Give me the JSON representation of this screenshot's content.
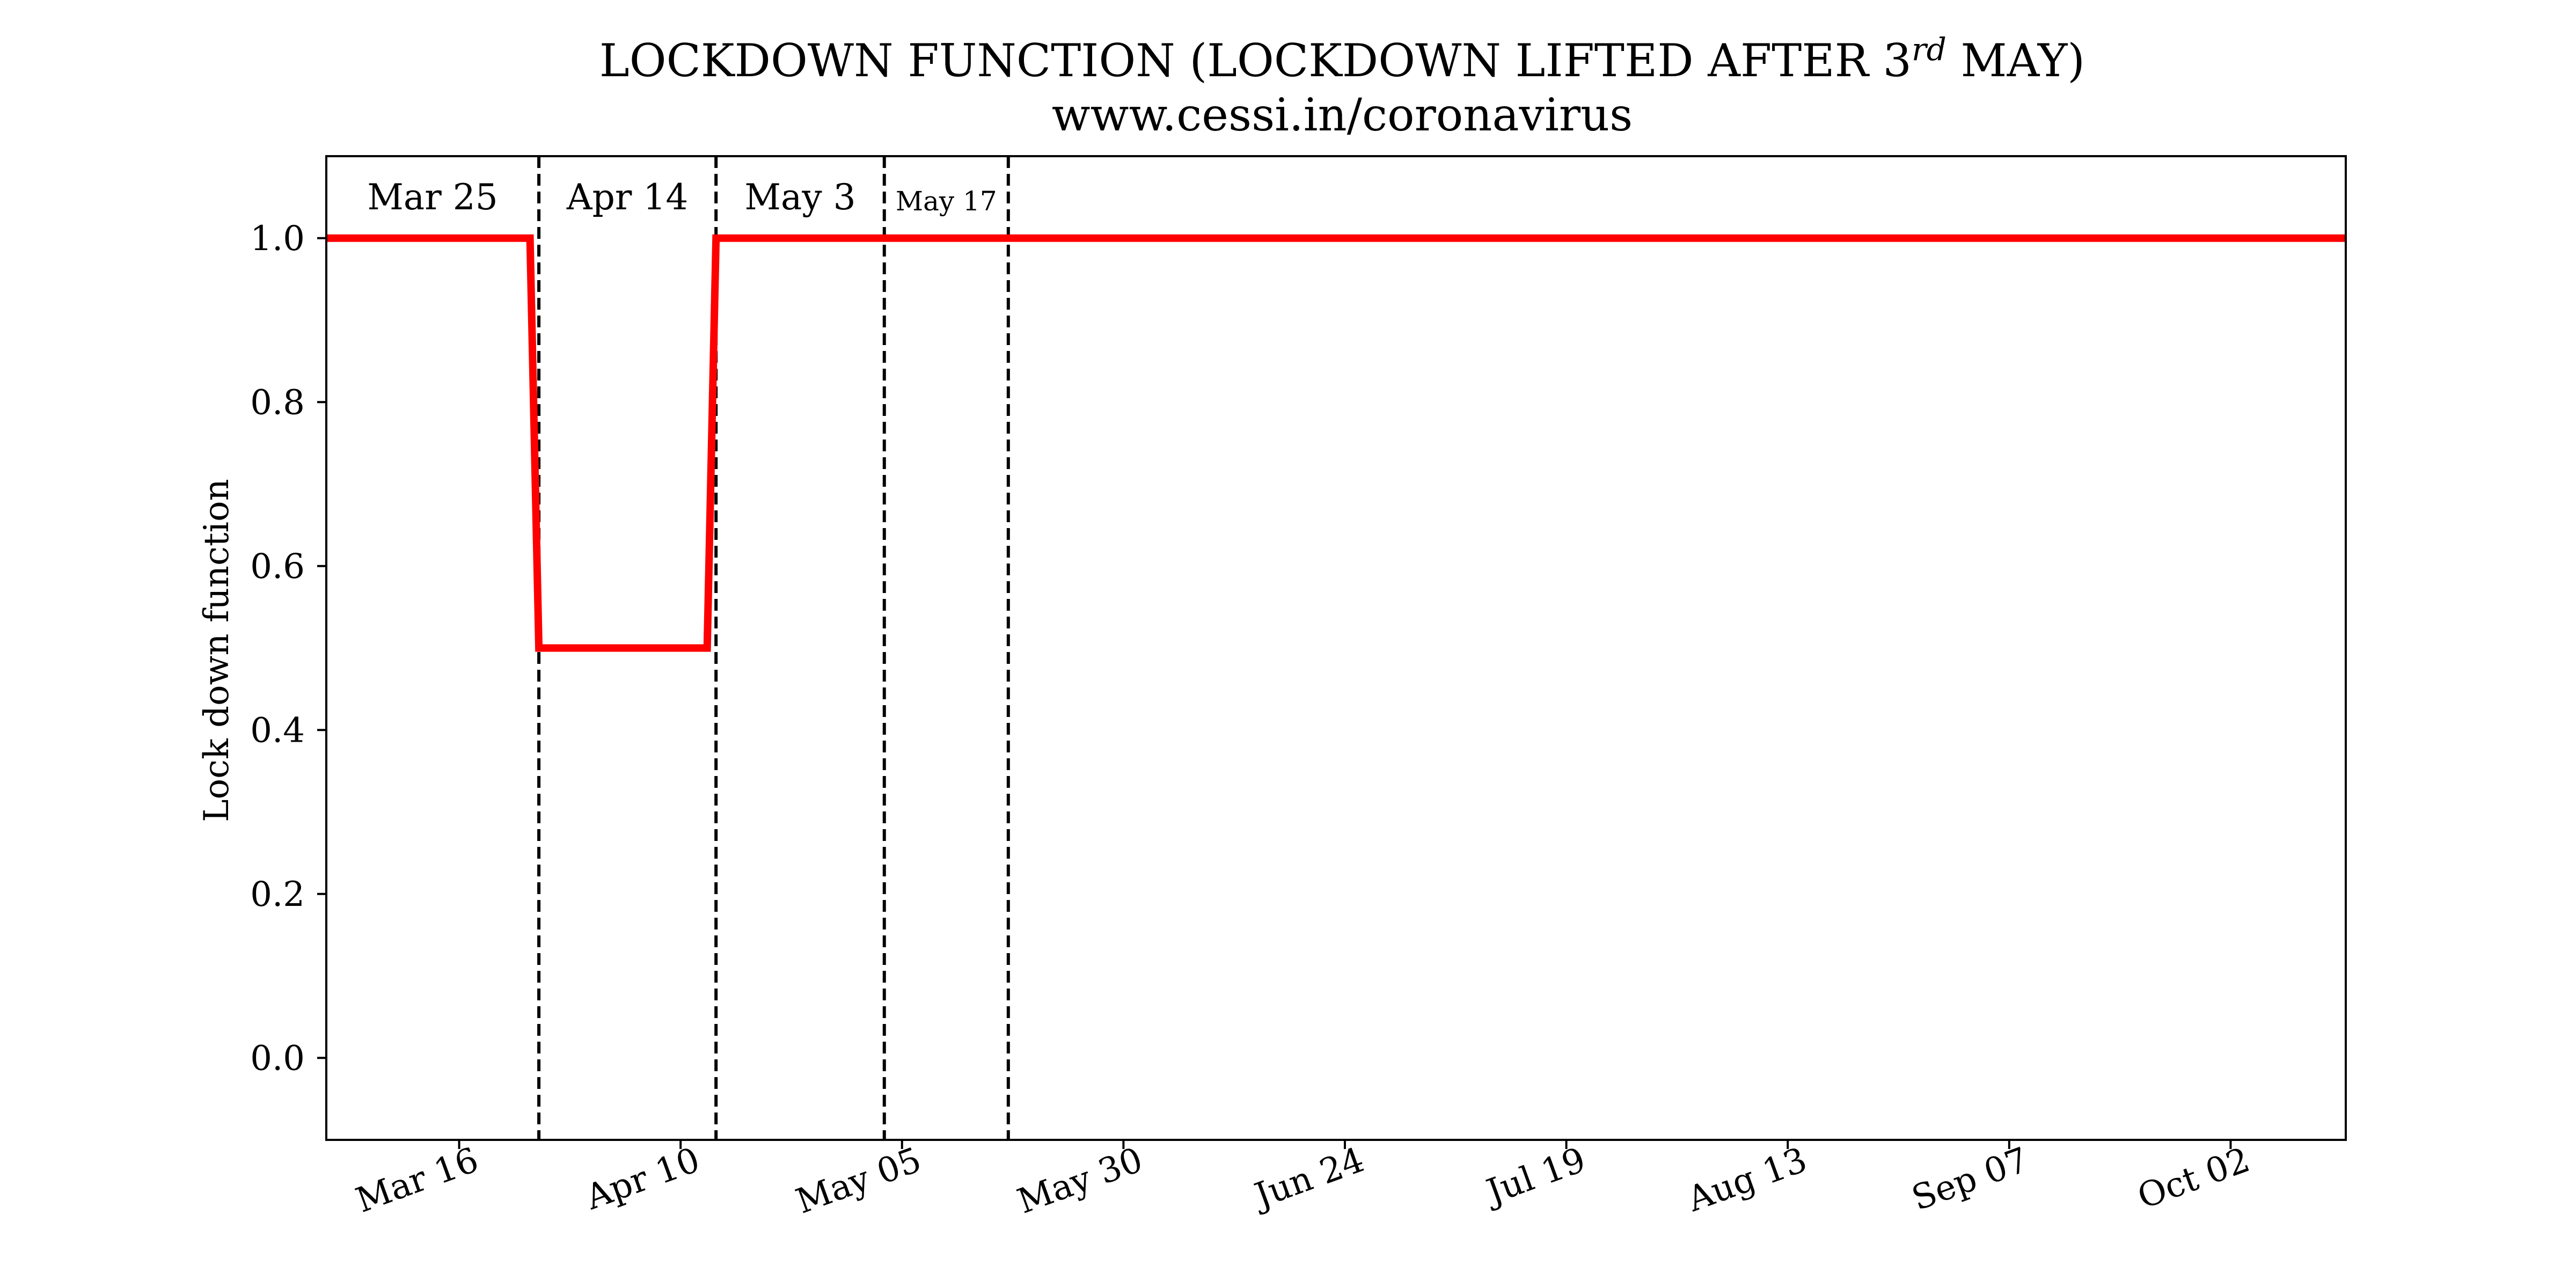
{
  "chart_data": {
    "type": "line",
    "title": "LOCKDOWN FUNCTION (LOCKDOWN LIFTED AFTER 3",
    "title_superscript": "rd",
    "title_suffix": " MAY)",
    "subtitle": "www.cessi.in/coronavirus",
    "xlabel": "",
    "ylabel": "Lock down function",
    "ylim": [
      -0.1,
      1.1
    ],
    "xlim": [
      "2020-03-01",
      "2020-10-15"
    ],
    "grid": false,
    "x_ticks": [
      {
        "date": "2020-03-16",
        "label": "Mar 16"
      },
      {
        "date": "2020-04-10",
        "label": "Apr 10"
      },
      {
        "date": "2020-05-05",
        "label": "May 05"
      },
      {
        "date": "2020-05-30",
        "label": "May 30"
      },
      {
        "date": "2020-06-24",
        "label": "Jun 24"
      },
      {
        "date": "2020-07-19",
        "label": "Jul 19"
      },
      {
        "date": "2020-08-13",
        "label": "Aug 13"
      },
      {
        "date": "2020-09-07",
        "label": "Sep 07"
      },
      {
        "date": "2020-10-02",
        "label": "Oct 02"
      }
    ],
    "y_ticks": [
      {
        "value": 0.0,
        "label": "0.0"
      },
      {
        "value": 0.2,
        "label": "0.2"
      },
      {
        "value": 0.4,
        "label": "0.4"
      },
      {
        "value": 0.6,
        "label": "0.6"
      },
      {
        "value": 0.8,
        "label": "0.8"
      },
      {
        "value": 1.0,
        "label": "1.0"
      }
    ],
    "series": [
      {
        "color": "#ff0000",
        "x": [
          "2020-03-01",
          "2020-03-24",
          "2020-03-25",
          "2020-04-13",
          "2020-04-14",
          "2020-10-15"
        ],
        "y": [
          1.0,
          1.0,
          0.5,
          0.5,
          1.0,
          1.0
        ]
      }
    ],
    "vlines": [
      {
        "date": "2020-03-25",
        "label": "Mar 25",
        "label_size": "large"
      },
      {
        "date": "2020-04-14",
        "label": "Apr 14",
        "label_size": "large"
      },
      {
        "date": "2020-05-03",
        "label": "May 3",
        "label_size": "large"
      },
      {
        "date": "2020-05-17",
        "label": "May 17",
        "label_size": "small"
      }
    ]
  }
}
